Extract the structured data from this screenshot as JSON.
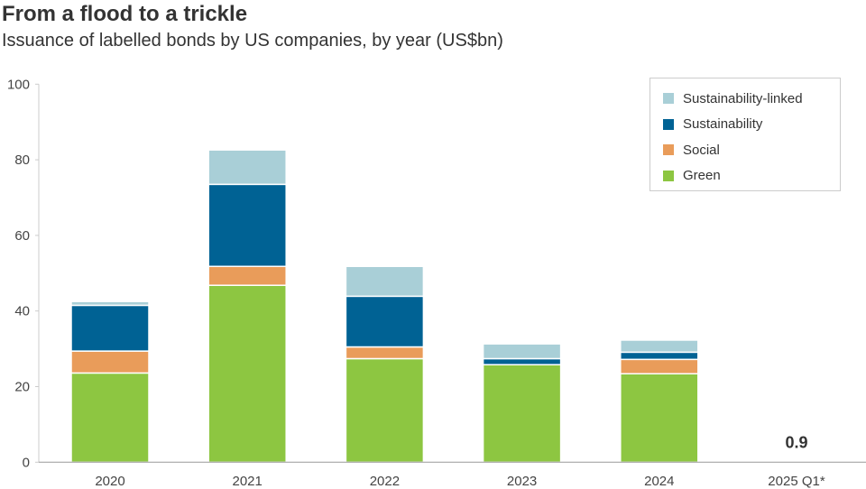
{
  "title": "From a flood to a trickle",
  "subtitle": "Issuance of labelled bonds by US companies, by year (US$bn)",
  "chart_data": {
    "type": "bar",
    "stacked": true,
    "categories": [
      "2020",
      "2021",
      "2022",
      "2023",
      "2024",
      "2025 Q1*"
    ],
    "series": [
      {
        "name": "Green",
        "color": "#8dc641",
        "values": [
          23.6,
          46.8,
          27.4,
          25.8,
          23.4,
          0.3
        ]
      },
      {
        "name": "Social",
        "color": "#e99c5a",
        "values": [
          5.8,
          5.0,
          3.1,
          0,
          3.8,
          0
        ]
      },
      {
        "name": "Sustainability",
        "color": "#006294",
        "values": [
          12.1,
          21.7,
          13.4,
          1.6,
          1.9,
          0.3
        ]
      },
      {
        "name": "Sustainability-linked",
        "color": "#a9cfd7",
        "values": [
          1.0,
          9.1,
          7.9,
          3.9,
          3.2,
          0.3
        ]
      }
    ],
    "ylim": [
      0,
      100
    ],
    "yticks": [
      0,
      20,
      40,
      60,
      80,
      100
    ],
    "annotations": [
      {
        "category": "2025 Q1*",
        "text": "0.9"
      }
    ],
    "legend": "top-right",
    "grid": false
  }
}
